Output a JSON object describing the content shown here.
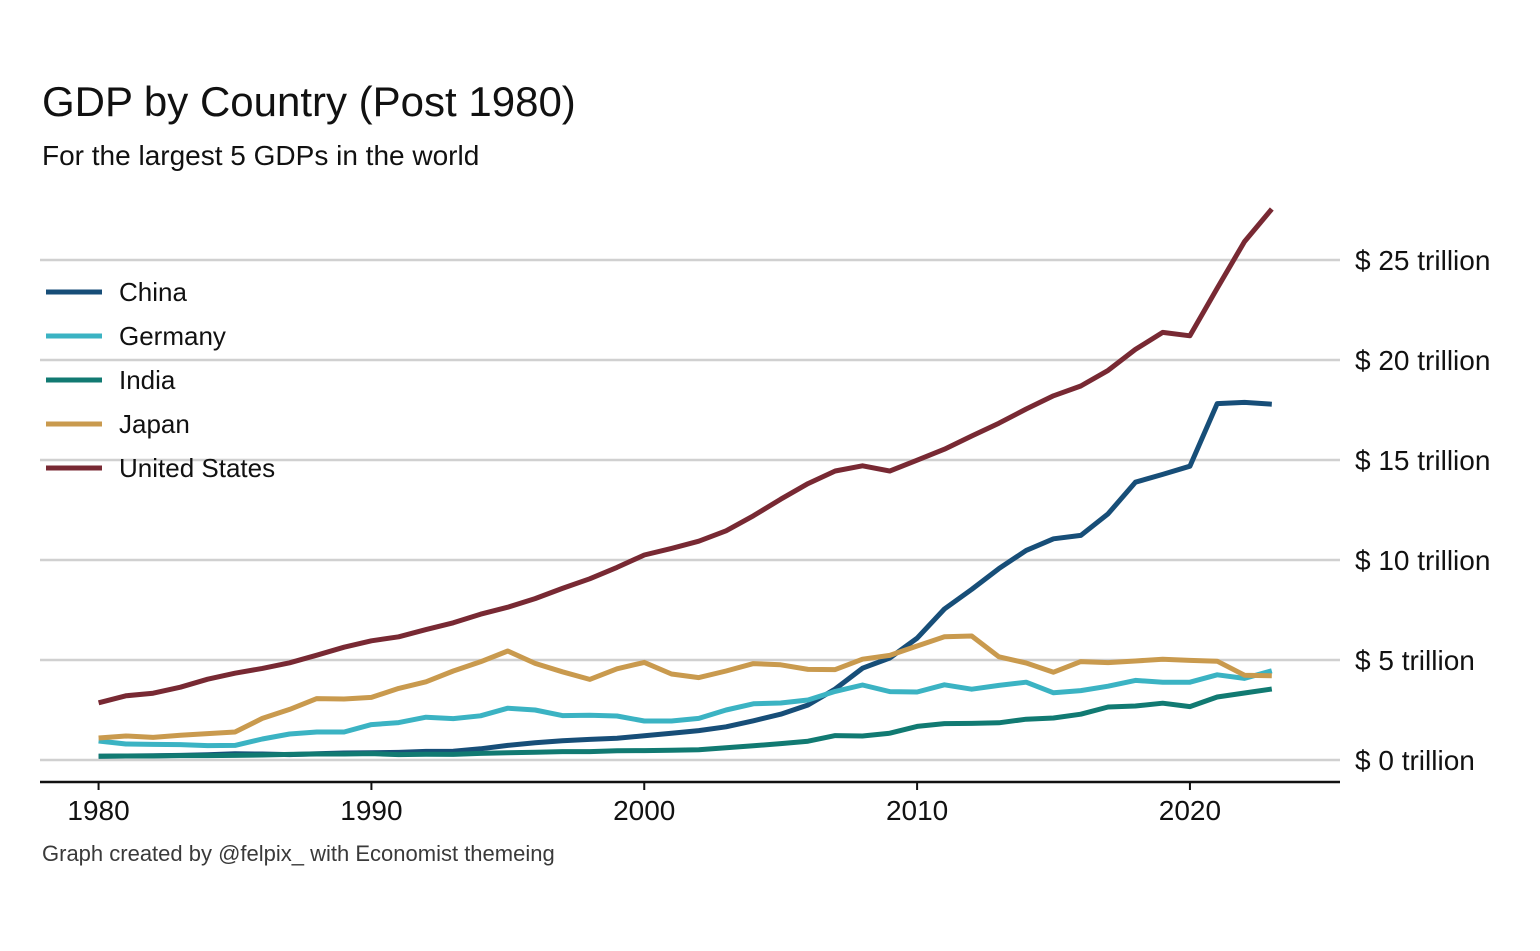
{
  "title": "GDP by Country (Post 1980)",
  "subtitle": "For the largest 5 GDPs in the world",
  "caption": "Graph created by @felpix_ with Economist themeing",
  "chart_data": {
    "type": "line",
    "x": [
      1980,
      1981,
      1982,
      1983,
      1984,
      1985,
      1986,
      1987,
      1988,
      1989,
      1990,
      1991,
      1992,
      1993,
      1994,
      1995,
      1996,
      1997,
      1998,
      1999,
      2000,
      2001,
      2002,
      2003,
      2004,
      2005,
      2006,
      2007,
      2008,
      2009,
      2010,
      2011,
      2012,
      2013,
      2014,
      2015,
      2016,
      2017,
      2018,
      2019,
      2020,
      2021,
      2022,
      2023
    ],
    "xlim": [
      1978,
      2025.5
    ],
    "ylim": [
      -1.1,
      28
    ],
    "x_ticks": [
      1980,
      1990,
      2000,
      2010,
      2020
    ],
    "y_ticks": [
      0,
      5,
      10,
      15,
      20,
      25
    ],
    "y_tick_labels": [
      "$ 0 trillion",
      "$ 5 trillion",
      "$ 10 trillion",
      "$ 15 trillion",
      "$ 20 trillion",
      "$ 25 trillion"
    ],
    "y_axis_position": "right",
    "grid": "horizontal",
    "legend_position": "top-left",
    "series": [
      {
        "name": "China",
        "color": "#174e78",
        "values": [
          0.19,
          0.2,
          0.21,
          0.23,
          0.26,
          0.31,
          0.3,
          0.27,
          0.31,
          0.35,
          0.36,
          0.38,
          0.43,
          0.44,
          0.56,
          0.73,
          0.86,
          0.96,
          1.03,
          1.09,
          1.21,
          1.34,
          1.47,
          1.66,
          1.96,
          2.29,
          2.75,
          3.55,
          4.59,
          5.1,
          6.09,
          7.55,
          8.53,
          9.57,
          10.48,
          11.06,
          11.23,
          12.31,
          13.89,
          14.28,
          14.69,
          17.82,
          17.88,
          17.79
        ]
      },
      {
        "name": "Germany",
        "color": "#3bb3c3",
        "values": [
          0.95,
          0.8,
          0.78,
          0.77,
          0.72,
          0.73,
          1.05,
          1.3,
          1.4,
          1.4,
          1.77,
          1.87,
          2.14,
          2.07,
          2.21,
          2.59,
          2.5,
          2.22,
          2.24,
          2.2,
          1.95,
          1.95,
          2.08,
          2.5,
          2.81,
          2.85,
          3.0,
          3.43,
          3.75,
          3.42,
          3.4,
          3.76,
          3.54,
          3.73,
          3.89,
          3.36,
          3.47,
          3.69,
          3.98,
          3.89,
          3.89,
          4.26,
          4.08,
          4.46
        ]
      },
      {
        "name": "India",
        "color": "#117a72",
        "values": [
          0.19,
          0.2,
          0.2,
          0.22,
          0.22,
          0.23,
          0.25,
          0.28,
          0.3,
          0.3,
          0.32,
          0.27,
          0.29,
          0.28,
          0.33,
          0.36,
          0.39,
          0.42,
          0.42,
          0.46,
          0.47,
          0.49,
          0.51,
          0.61,
          0.71,
          0.82,
          0.94,
          1.22,
          1.2,
          1.34,
          1.68,
          1.82,
          1.83,
          1.86,
          2.04,
          2.1,
          2.29,
          2.65,
          2.7,
          2.84,
          2.67,
          3.15,
          3.35,
          3.55
        ]
      },
      {
        "name": "Japan",
        "color": "#c99a4e",
        "values": [
          1.1,
          1.2,
          1.13,
          1.24,
          1.32,
          1.4,
          2.08,
          2.53,
          3.07,
          3.05,
          3.13,
          3.58,
          3.91,
          4.45,
          4.91,
          5.45,
          4.83,
          4.41,
          4.03,
          4.56,
          4.88,
          4.3,
          4.12,
          4.45,
          4.82,
          4.76,
          4.53,
          4.52,
          5.04,
          5.23,
          5.7,
          6.16,
          6.2,
          5.16,
          4.85,
          4.39,
          4.92,
          4.87,
          4.95,
          5.04,
          4.98,
          4.94,
          4.24,
          4.21
        ]
      },
      {
        "name": "United States",
        "color": "#782933",
        "values": [
          2.86,
          3.21,
          3.34,
          3.64,
          4.04,
          4.34,
          4.58,
          4.86,
          5.24,
          5.64,
          5.96,
          6.16,
          6.52,
          6.86,
          7.29,
          7.64,
          8.07,
          8.58,
          9.06,
          9.63,
          10.25,
          10.58,
          10.94,
          11.46,
          12.21,
          13.04,
          13.82,
          14.45,
          14.71,
          14.45,
          14.99,
          15.54,
          16.2,
          16.84,
          17.55,
          18.21,
          18.7,
          19.48,
          20.53,
          21.38,
          21.21,
          23.59,
          25.92,
          27.55
        ]
      }
    ]
  }
}
